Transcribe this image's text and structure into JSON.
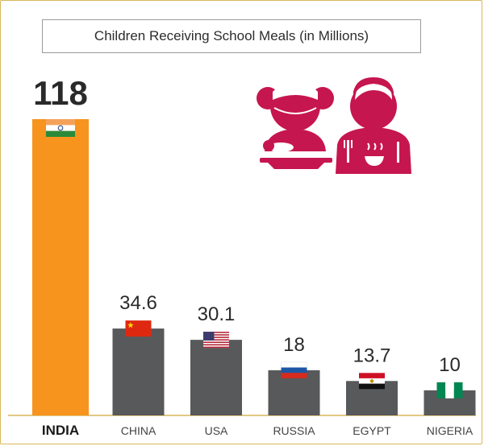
{
  "colors": {
    "highlight_bar": "#f7941d",
    "bar": "#58595b",
    "icon": "#c6164f",
    "baseline": "#d9b75a",
    "text": "#2a2a2a"
  },
  "icon": "children-eating-meal-icon",
  "chart_data": {
    "type": "bar",
    "title": "Children Receiving School Meals (in Millions)",
    "categories": [
      "INDIA",
      "CHINA",
      "USA",
      "RUSSIA",
      "EGYPT",
      "NIGERIA"
    ],
    "values": [
      118,
      34.6,
      30.1,
      18,
      13.7,
      10
    ],
    "value_labels": [
      "118",
      "34.6",
      "30.1",
      "18",
      "13.7",
      "10"
    ],
    "flags": [
      "india-flag",
      "china-flag",
      "usa-flag",
      "russia-flag",
      "egypt-flag",
      "nigeria-flag"
    ],
    "highlight": "INDIA",
    "ylim": [
      0,
      118
    ],
    "grid": false,
    "legend": "none"
  }
}
